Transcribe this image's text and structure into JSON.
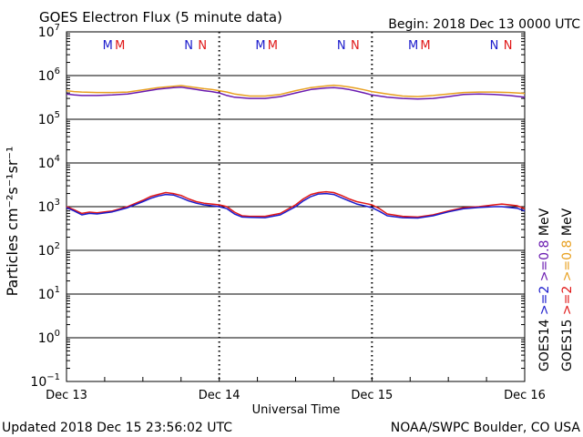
{
  "header": {
    "title": "GOES Electron Flux (5 minute data)",
    "begin": "Begin: 2018 Dec 13 0000 UTC"
  },
  "footer": {
    "updated": "Updated 2018 Dec 15 23:56:02 UTC",
    "credit": "NOAA/SWPC Boulder, CO USA"
  },
  "colors": {
    "goes14_2mev": "#1a1acc",
    "goes15_2mev": "#e01818",
    "goes14_08mev": "#6a1ab0",
    "goes15_08mev": "#e8a020",
    "grid": "#000000"
  },
  "chart_data": {
    "type": "line",
    "title": "GOES Electron Flux (5 minute data)",
    "xlabel": "Universal Time",
    "ylabel": "Particles cm⁻²s⁻¹sr⁻¹",
    "yscale": "log",
    "ylim": [
      0.1,
      10000000
    ],
    "xlim": [
      0,
      3
    ],
    "x_tick_labels": [
      "Dec 13",
      "Dec 14",
      "Dec 15",
      "Dec 16"
    ],
    "y_tick_labels": [
      {
        "exp": "7",
        "value": 10000000
      },
      {
        "exp": "6",
        "value": 1000000
      },
      {
        "exp": "5",
        "value": 100000
      },
      {
        "exp": "4",
        "value": 10000
      },
      {
        "exp": "3",
        "value": 1000
      },
      {
        "exp": "2",
        "value": 100
      },
      {
        "exp": "1",
        "value": 10
      },
      {
        "exp": "0",
        "value": 1
      },
      {
        "exp": "−1",
        "value": 0.1
      }
    ],
    "threshold": 1000,
    "markers": [
      {
        "x": 0.27,
        "label": "M",
        "color": "#1a1acc"
      },
      {
        "x": 0.35,
        "label": "M",
        "color": "#e01818"
      },
      {
        "x": 0.8,
        "label": "N",
        "color": "#1a1acc"
      },
      {
        "x": 0.89,
        "label": "N",
        "color": "#e01818"
      },
      {
        "x": 1.27,
        "label": "M",
        "color": "#1a1acc"
      },
      {
        "x": 1.35,
        "label": "M",
        "color": "#e01818"
      },
      {
        "x": 1.8,
        "label": "N",
        "color": "#1a1acc"
      },
      {
        "x": 1.89,
        "label": "N",
        "color": "#e01818"
      },
      {
        "x": 2.27,
        "label": "M",
        "color": "#1a1acc"
      },
      {
        "x": 2.35,
        "label": "M",
        "color": "#e01818"
      },
      {
        "x": 2.8,
        "label": "N",
        "color": "#1a1acc"
      },
      {
        "x": 2.89,
        "label": "N",
        "color": "#e01818"
      }
    ],
    "legend": [
      {
        "text": "GOES14",
        "color": "#000000"
      },
      {
        "text": ">=2",
        "color": "#1a1acc"
      },
      {
        "text": ">=0.8",
        "color": "#6a1ab0"
      },
      {
        "text": "MeV",
        "color": "#000000"
      },
      {
        "text": "GOES15",
        "color": "#000000"
      },
      {
        "text": ">=2",
        "color": "#e01818"
      },
      {
        "text": ">=0.8",
        "color": "#e8a020"
      },
      {
        "text": "MeV",
        "color": "#000000"
      }
    ],
    "series": [
      {
        "legend_key": "GOES15 >=0.8 MeV",
        "color": "#e8a020",
        "x": [
          0,
          0.05,
          0.1,
          0.2,
          0.3,
          0.4,
          0.5,
          0.6,
          0.7,
          0.75,
          0.8,
          0.85,
          0.9,
          0.95,
          1.0,
          1.05,
          1.1,
          1.2,
          1.3,
          1.4,
          1.5,
          1.6,
          1.7,
          1.75,
          1.8,
          1.85,
          1.9,
          1.95,
          2.0,
          2.1,
          2.2,
          2.3,
          2.4,
          2.5,
          2.6,
          2.7,
          2.8,
          2.9,
          3.0
        ],
        "y": [
          450000,
          430000,
          420000,
          410000,
          410000,
          420000,
          470000,
          530000,
          570000,
          590000,
          560000,
          530000,
          500000,
          480000,
          450000,
          420000,
          380000,
          340000,
          340000,
          370000,
          450000,
          530000,
          580000,
          600000,
          580000,
          550000,
          510000,
          470000,
          430000,
          380000,
          340000,
          330000,
          350000,
          380000,
          410000,
          420000,
          420000,
          410000,
          390000
        ]
      },
      {
        "legend_key": "GOES14 >=0.8 MeV",
        "color": "#6a1ab0",
        "x": [
          0,
          0.05,
          0.1,
          0.2,
          0.3,
          0.4,
          0.5,
          0.6,
          0.7,
          0.75,
          0.8,
          0.85,
          0.9,
          0.95,
          1.0,
          1.05,
          1.1,
          1.2,
          1.3,
          1.4,
          1.5,
          1.6,
          1.7,
          1.75,
          1.8,
          1.85,
          1.9,
          1.95,
          2.0,
          2.1,
          2.2,
          2.3,
          2.4,
          2.5,
          2.6,
          2.7,
          2.8,
          2.9,
          3.0
        ],
        "y": [
          380000,
          360000,
          350000,
          350000,
          360000,
          380000,
          430000,
          490000,
          530000,
          540000,
          510000,
          480000,
          450000,
          430000,
          400000,
          350000,
          320000,
          300000,
          300000,
          330000,
          400000,
          480000,
          520000,
          530000,
          510000,
          480000,
          440000,
          400000,
          360000,
          320000,
          300000,
          290000,
          300000,
          330000,
          370000,
          380000,
          370000,
          350000,
          320000
        ]
      },
      {
        "legend_key": "GOES15 >=2 MeV",
        "color": "#e01818",
        "x": [
          0,
          0.05,
          0.1,
          0.15,
          0.2,
          0.3,
          0.4,
          0.5,
          0.55,
          0.6,
          0.65,
          0.7,
          0.75,
          0.8,
          0.85,
          0.9,
          0.95,
          1.0,
          1.05,
          1.1,
          1.15,
          1.2,
          1.3,
          1.4,
          1.5,
          1.55,
          1.6,
          1.65,
          1.7,
          1.75,
          1.8,
          1.85,
          1.9,
          1.95,
          2.0,
          2.05,
          2.1,
          2.2,
          2.3,
          2.4,
          2.5,
          2.6,
          2.7,
          2.8,
          2.85,
          2.9,
          2.95,
          3.0
        ],
        "y": [
          1000,
          850,
          700,
          750,
          720,
          800,
          1000,
          1400,
          1700,
          1900,
          2100,
          2000,
          1800,
          1500,
          1300,
          1200,
          1150,
          1100,
          1000,
          750,
          620,
          600,
          600,
          700,
          1100,
          1500,
          1900,
          2100,
          2200,
          2100,
          1800,
          1500,
          1300,
          1200,
          1100,
          900,
          680,
          600,
          580,
          650,
          800,
          950,
          1000,
          1100,
          1150,
          1100,
          1050,
          900
        ]
      },
      {
        "legend_key": "GOES14 >=2 MeV",
        "color": "#1a1acc",
        "x": [
          0,
          0.05,
          0.1,
          0.15,
          0.2,
          0.3,
          0.4,
          0.5,
          0.55,
          0.6,
          0.65,
          0.7,
          0.75,
          0.8,
          0.85,
          0.9,
          0.95,
          1.0,
          1.05,
          1.1,
          1.15,
          1.2,
          1.3,
          1.4,
          1.5,
          1.55,
          1.6,
          1.65,
          1.7,
          1.75,
          1.8,
          1.85,
          1.9,
          1.95,
          2.0,
          2.05,
          2.1,
          2.2,
          2.3,
          2.4,
          2.5,
          2.6,
          2.7,
          2.8,
          2.85,
          2.9,
          2.95,
          3.0
        ],
        "y": [
          950,
          800,
          650,
          700,
          680,
          760,
          950,
          1300,
          1550,
          1750,
          1900,
          1850,
          1600,
          1350,
          1200,
          1100,
          1050,
          1000,
          900,
          680,
          580,
          570,
          560,
          650,
          1000,
          1350,
          1700,
          1950,
          2000,
          1900,
          1600,
          1350,
          1150,
          1050,
          950,
          780,
          620,
          560,
          550,
          620,
          760,
          900,
          960,
          1000,
          1000,
          960,
          920,
          800
        ]
      }
    ]
  }
}
